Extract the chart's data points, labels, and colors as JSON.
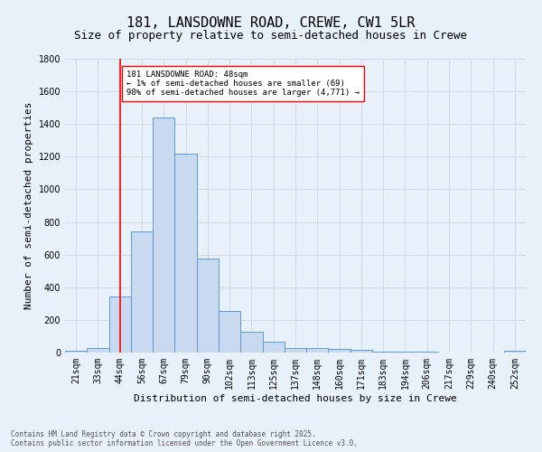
{
  "title_line1": "181, LANSDOWNE ROAD, CREWE, CW1 5LR",
  "title_line2": "Size of property relative to semi-detached houses in Crewe",
  "xlabel": "Distribution of semi-detached houses by size in Crewe",
  "ylabel": "Number of semi-detached properties",
  "categories": [
    "21sqm",
    "33sqm",
    "44sqm",
    "56sqm",
    "67sqm",
    "79sqm",
    "90sqm",
    "102sqm",
    "113sqm",
    "125sqm",
    "137sqm",
    "148sqm",
    "160sqm",
    "171sqm",
    "183sqm",
    "194sqm",
    "206sqm",
    "217sqm",
    "229sqm",
    "240sqm",
    "252sqm"
  ],
  "values": [
    12,
    30,
    345,
    740,
    1440,
    1220,
    575,
    255,
    125,
    65,
    30,
    27,
    20,
    15,
    5,
    5,
    3,
    2,
    1,
    1,
    12
  ],
  "bar_color": "#c9d9f0",
  "bar_edge_color": "#5b9bd5",
  "grid_color": "#d0d8e8",
  "background_color": "#e8f0fa",
  "vline_x": 2,
  "vline_color": "red",
  "annotation_text": "181 LANSDOWNE ROAD: 48sqm\n← 1% of semi-detached houses are smaller (69)\n98% of semi-detached houses are larger (4,771) →",
  "annotation_box_color": "white",
  "annotation_box_edge": "red",
  "ylim": [
    0,
    1800
  ],
  "footer_text": "Contains HM Land Registry data © Crown copyright and database right 2025.\nContains public sector information licensed under the Open Government Licence v3.0.",
  "title_fontsize": 11,
  "subtitle_fontsize": 9,
  "tick_fontsize": 7,
  "ylabel_fontsize": 8,
  "xlabel_fontsize": 8,
  "annotation_fontsize": 6.5,
  "footer_fontsize": 5.5
}
